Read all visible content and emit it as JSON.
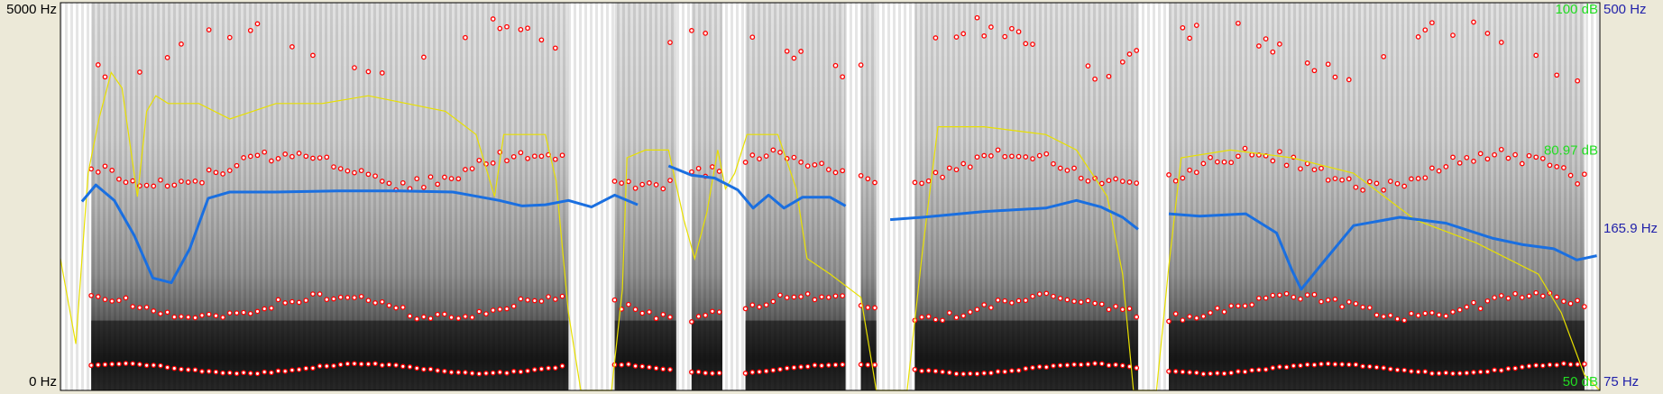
{
  "chart_data": {
    "type": "spectrogram",
    "axis_left": {
      "top_label": "5000 Hz",
      "bottom_label": "0 Hz",
      "range_hz": [
        0,
        5000
      ]
    },
    "axis_right_intensity": {
      "top_label": "100 dB",
      "mid_label": "80.97 dB",
      "bottom_label": "50 dB",
      "range_db": [
        50,
        100
      ],
      "marked_value_db": 80.97
    },
    "axis_right_pitch": {
      "top_label": "500 Hz",
      "mid_label": "165.9 Hz",
      "bottom_label": "75 Hz",
      "range_hz": [
        75,
        500
      ],
      "marked_value_hz": 165.9
    },
    "colors": {
      "formant": "#ff0000",
      "pitch": "#1a6fe0",
      "intensity": "#e8e000",
      "intensity_label": "#22dd22",
      "pitch_label": "#2222aa"
    },
    "time_range_s": [
      0,
      1
    ],
    "pitch_contour_hz": [
      {
        "t": 0.014,
        "v": 189
      },
      {
        "t": 0.023,
        "v": 205
      },
      {
        "t": 0.035,
        "v": 190
      },
      {
        "t": 0.048,
        "v": 160
      },
      {
        "t": 0.06,
        "v": 130
      },
      {
        "t": 0.072,
        "v": 127
      },
      {
        "t": 0.084,
        "v": 150
      },
      {
        "t": 0.096,
        "v": 192
      },
      {
        "t": 0.11,
        "v": 198
      },
      {
        "t": 0.14,
        "v": 198
      },
      {
        "t": 0.18,
        "v": 199
      },
      {
        "t": 0.22,
        "v": 199
      },
      {
        "t": 0.255,
        "v": 198
      },
      {
        "t": 0.285,
        "v": 190
      },
      {
        "t": 0.3,
        "v": 185
      },
      {
        "t": 0.315,
        "v": 186
      },
      {
        "t": 0.33,
        "v": 190
      },
      {
        "t": 0.345,
        "v": 184
      },
      {
        "t": 0.36,
        "v": 195
      },
      {
        "t": 0.375,
        "v": 186
      },
      null,
      {
        "t": 0.395,
        "v": 225
      },
      {
        "t": 0.41,
        "v": 215
      },
      {
        "t": 0.425,
        "v": 212
      },
      {
        "t": 0.44,
        "v": 200
      },
      {
        "t": 0.45,
        "v": 183
      },
      {
        "t": 0.46,
        "v": 195
      },
      {
        "t": 0.47,
        "v": 183
      },
      {
        "t": 0.482,
        "v": 193
      },
      {
        "t": 0.5,
        "v": 193
      },
      {
        "t": 0.51,
        "v": 185
      },
      null,
      {
        "t": 0.539,
        "v": 173
      },
      {
        "t": 0.56,
        "v": 175
      },
      {
        "t": 0.6,
        "v": 180
      },
      {
        "t": 0.64,
        "v": 183
      },
      {
        "t": 0.66,
        "v": 190
      },
      {
        "t": 0.676,
        "v": 184
      },
      {
        "t": 0.69,
        "v": 175
      },
      {
        "t": 0.7,
        "v": 165
      },
      null,
      {
        "t": 0.72,
        "v": 178
      },
      {
        "t": 0.74,
        "v": 176
      },
      {
        "t": 0.77,
        "v": 178
      },
      {
        "t": 0.79,
        "v": 162
      },
      {
        "t": 0.8,
        "v": 135
      },
      {
        "t": 0.806,
        "v": 123
      },
      {
        "t": 0.82,
        "v": 140
      },
      {
        "t": 0.84,
        "v": 168
      },
      {
        "t": 0.87,
        "v": 175
      },
      {
        "t": 0.9,
        "v": 170
      },
      {
        "t": 0.93,
        "v": 158
      },
      {
        "t": 0.95,
        "v": 153
      },
      {
        "t": 0.97,
        "v": 150
      },
      {
        "t": 0.985,
        "v": 142
      },
      {
        "t": 0.998,
        "v": 145
      }
    ],
    "intensity_contour_db": [
      {
        "t": 0.0,
        "v": 67
      },
      {
        "t": 0.01,
        "v": 56
      },
      {
        "t": 0.018,
        "v": 78
      },
      {
        "t": 0.025,
        "v": 85
      },
      {
        "t": 0.033,
        "v": 91
      },
      {
        "t": 0.04,
        "v": 89
      },
      {
        "t": 0.05,
        "v": 75
      },
      {
        "t": 0.056,
        "v": 86
      },
      {
        "t": 0.062,
        "v": 88
      },
      {
        "t": 0.07,
        "v": 87
      },
      {
        "t": 0.09,
        "v": 87
      },
      {
        "t": 0.11,
        "v": 85
      },
      {
        "t": 0.14,
        "v": 87
      },
      {
        "t": 0.17,
        "v": 87
      },
      {
        "t": 0.2,
        "v": 88
      },
      {
        "t": 0.25,
        "v": 86
      },
      {
        "t": 0.27,
        "v": 83
      },
      {
        "t": 0.282,
        "v": 75
      },
      {
        "t": 0.288,
        "v": 83
      },
      {
        "t": 0.3,
        "v": 83
      },
      {
        "t": 0.315,
        "v": 83
      },
      {
        "t": 0.322,
        "v": 77
      },
      {
        "t": 0.33,
        "v": 60
      },
      {
        "t": 0.338,
        "v": 50
      },
      {
        "t": 0.35,
        "v": 50
      },
      {
        "t": 0.358,
        "v": 50
      },
      {
        "t": 0.365,
        "v": 63
      },
      {
        "t": 0.368,
        "v": 80
      },
      {
        "t": 0.38,
        "v": 81
      },
      {
        "t": 0.395,
        "v": 81
      },
      {
        "t": 0.405,
        "v": 72
      },
      {
        "t": 0.412,
        "v": 67
      },
      {
        "t": 0.42,
        "v": 73
      },
      {
        "t": 0.427,
        "v": 81
      },
      {
        "t": 0.432,
        "v": 76
      },
      {
        "t": 0.438,
        "v": 78
      },
      {
        "t": 0.446,
        "v": 83
      },
      {
        "t": 0.466,
        "v": 83
      },
      {
        "t": 0.478,
        "v": 76
      },
      {
        "t": 0.485,
        "v": 67
      },
      {
        "t": 0.5,
        "v": 65
      },
      {
        "t": 0.52,
        "v": 62
      },
      {
        "t": 0.53,
        "v": 50
      },
      {
        "t": 0.55,
        "v": 50
      },
      {
        "t": 0.56,
        "v": 68
      },
      {
        "t": 0.57,
        "v": 84
      },
      {
        "t": 0.6,
        "v": 84
      },
      {
        "t": 0.64,
        "v": 83
      },
      {
        "t": 0.66,
        "v": 81
      },
      {
        "t": 0.68,
        "v": 75
      },
      {
        "t": 0.69,
        "v": 65
      },
      {
        "t": 0.697,
        "v": 50
      },
      {
        "t": 0.712,
        "v": 50
      },
      {
        "t": 0.72,
        "v": 66
      },
      {
        "t": 0.728,
        "v": 80
      },
      {
        "t": 0.76,
        "v": 81
      },
      {
        "t": 0.8,
        "v": 80
      },
      {
        "t": 0.84,
        "v": 78
      },
      {
        "t": 0.88,
        "v": 72
      },
      {
        "t": 0.92,
        "v": 69
      },
      {
        "t": 0.96,
        "v": 65
      },
      {
        "t": 0.975,
        "v": 60
      },
      {
        "t": 0.99,
        "v": 52
      },
      {
        "t": 1.0,
        "v": 50
      }
    ]
  }
}
